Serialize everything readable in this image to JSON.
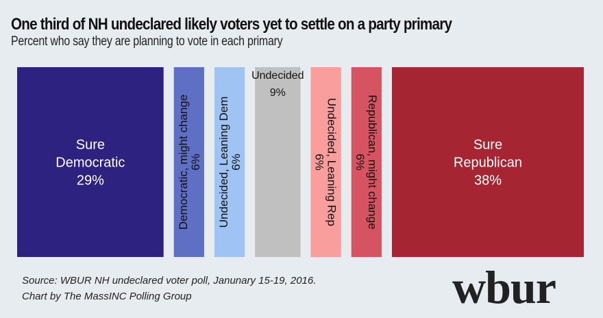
{
  "chart_data": {
    "type": "bar",
    "variant": "marimekko-single-row",
    "title": "One third of NH undeclared likely voters yet to settle on a party primary",
    "subtitle": "Percent who say they are planning to vote in each primary",
    "xlabel": "",
    "ylabel": "",
    "grid": false,
    "legend": "none",
    "categories": [
      "Sure Democratic",
      "Democratic,  might change",
      "Undecided, Leaning Dem",
      "Undecided",
      "Undecided, Leaning Rep",
      "Republican, might change",
      "Sure Republican"
    ],
    "values": [
      29,
      6,
      6,
      9,
      6,
      6,
      38
    ],
    "value_labels": [
      "29%",
      "6%",
      "6%",
      "9%",
      "6%",
      "6%",
      "38%"
    ],
    "colors": [
      "#2e2280",
      "#5f6fc3",
      "#9fc4f3",
      "#c0c0c0",
      "#f99d9d",
      "#d65461",
      "#a52632"
    ],
    "label_colors": [
      "#ffffff",
      "#111111",
      "#111111",
      "#111111",
      "#111111",
      "#111111",
      "#ffffff"
    ],
    "label_orientation": [
      "horizontal",
      "rotated-up",
      "rotated-up",
      "horizontal-top",
      "rotated-down",
      "rotated-down",
      "horizontal"
    ]
  },
  "footer": {
    "source_line": "Source: WBUR NH undeclared voter poll, Janunary 15-19, 2016.",
    "credit_line": "Chart by The MassINC  Polling Group",
    "logo_text": "wbur"
  }
}
